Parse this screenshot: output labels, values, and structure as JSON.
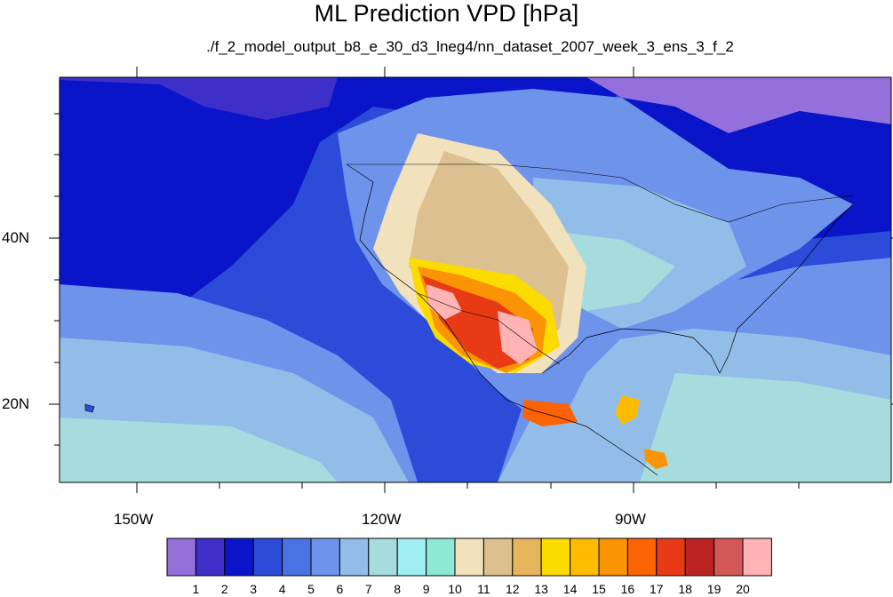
{
  "title": "ML Prediction VPD [hPa]",
  "subtitle": "./f_2_model_output_b8_e_30_d3_lneg4/nn_dataset_2007_week_3_ens_3_f_2",
  "axes": {
    "lon_labels": [
      "150W",
      "120W",
      "90W"
    ],
    "lat_labels": [
      "40N",
      "20N"
    ]
  },
  "colorbar": {
    "labels": [
      "1",
      "2",
      "3",
      "4",
      "5",
      "6",
      "7",
      "8",
      "9",
      "10",
      "11",
      "12",
      "13",
      "14",
      "15",
      "16",
      "17",
      "18",
      "19",
      "20"
    ],
    "colors": [
      "#9370db",
      "#3d2fc8",
      "#0a14c8",
      "#2c4bd8",
      "#4a72e2",
      "#6e93eb",
      "#93bde9",
      "#a7dcdf",
      "#9feef2",
      "#8ee8d4",
      "#f1e2bd",
      "#dcc08f",
      "#e6b45b",
      "#fcdb00",
      "#ffbb00",
      "#fb9405",
      "#fb6304",
      "#e93a16",
      "#bb2222",
      "#d35757",
      "#ffb3b3"
    ]
  },
  "colors": {
    "ocean_deep": "#3d2fc8",
    "ocean_mid": "#2c4bd8",
    "land_moist": "#6e93eb",
    "dry_core": "#ffb3b3",
    "background": "#ffffff"
  }
}
